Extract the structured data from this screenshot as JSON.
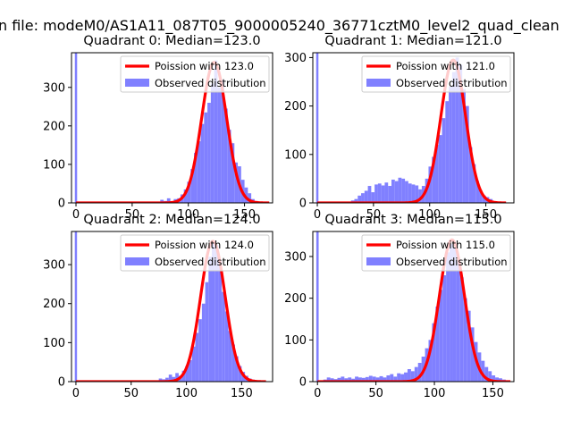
{
  "figure": {
    "suptitle": "n file: modeM0/AS1A11_087T05_9000005240_36771cztM0_level2_quad_clean"
  },
  "colors": {
    "poisson": "#ff0000",
    "histogram": "#8080ff",
    "axes": "#000000"
  },
  "chart_data": [
    {
      "type": "histogram",
      "title": "Quadrant 0: Median=123.0",
      "median": 123.0,
      "xlim": [
        -4,
        175
      ],
      "ylim": [
        0,
        390
      ],
      "xticks": [
        0,
        50,
        100,
        150
      ],
      "yticks": [
        0,
        100,
        200,
        300
      ],
      "legend": {
        "position": "top-right",
        "entries": [
          "Poission with 123.0",
          "Observed distribution"
        ]
      },
      "histogram": {
        "name": "Observed distribution",
        "bin_width": 3,
        "spike": {
          "x": 0,
          "value": 390
        },
        "bins": [
          [
            72,
            3
          ],
          [
            75,
            8
          ],
          [
            78,
            5
          ],
          [
            81,
            12
          ],
          [
            84,
            4
          ],
          [
            87,
            10
          ],
          [
            90,
            12
          ],
          [
            93,
            22
          ],
          [
            96,
            35
          ],
          [
            99,
            55
          ],
          [
            102,
            88
          ],
          [
            105,
            130
          ],
          [
            108,
            160
          ],
          [
            111,
            205
          ],
          [
            114,
            235
          ],
          [
            117,
            260
          ],
          [
            120,
            310
          ],
          [
            123,
            370
          ],
          [
            126,
            300
          ],
          [
            129,
            320
          ],
          [
            132,
            245
          ],
          [
            135,
            190
          ],
          [
            138,
            155
          ],
          [
            141,
            105
          ],
          [
            144,
            95
          ],
          [
            147,
            60
          ],
          [
            150,
            40
          ],
          [
            153,
            25
          ],
          [
            156,
            10
          ],
          [
            159,
            5
          ],
          [
            162,
            3
          ]
        ]
      },
      "poisson": {
        "name": "Poission with 123.0",
        "mu": 123.0,
        "peak": 365,
        "x_range": [
          0,
          172
        ]
      }
    },
    {
      "type": "histogram",
      "title": "Quadrant 1: Median=121.0",
      "median": 121.0,
      "xlim": [
        -4,
        175
      ],
      "ylim": [
        0,
        310
      ],
      "xticks": [
        0,
        50,
        100,
        150
      ],
      "yticks": [
        0,
        100,
        200,
        300
      ],
      "legend": {
        "position": "top-right",
        "entries": [
          "Poission with 121.0",
          "Observed distribution"
        ]
      },
      "histogram": {
        "name": "Observed distribution",
        "bin_width": 3,
        "spike": {
          "x": 0,
          "value": 310
        },
        "bins": [
          [
            30,
            5
          ],
          [
            33,
            8
          ],
          [
            36,
            15
          ],
          [
            39,
            20
          ],
          [
            42,
            25
          ],
          [
            45,
            35
          ],
          [
            48,
            22
          ],
          [
            51,
            38
          ],
          [
            54,
            40
          ],
          [
            57,
            36
          ],
          [
            60,
            42
          ],
          [
            63,
            35
          ],
          [
            66,
            48
          ],
          [
            69,
            45
          ],
          [
            72,
            52
          ],
          [
            75,
            50
          ],
          [
            78,
            45
          ],
          [
            81,
            40
          ],
          [
            84,
            38
          ],
          [
            87,
            36
          ],
          [
            90,
            28
          ],
          [
            93,
            35
          ],
          [
            96,
            50
          ],
          [
            99,
            75
          ],
          [
            102,
            95
          ],
          [
            105,
            120
          ],
          [
            108,
            140
          ],
          [
            111,
            175
          ],
          [
            114,
            210
          ],
          [
            117,
            240
          ],
          [
            120,
            270
          ],
          [
            123,
            300
          ],
          [
            126,
            285
          ],
          [
            129,
            235
          ],
          [
            132,
            200
          ],
          [
            135,
            115
          ],
          [
            138,
            80
          ],
          [
            141,
            45
          ],
          [
            144,
            25
          ],
          [
            147,
            15
          ],
          [
            150,
            12
          ],
          [
            153,
            8
          ]
        ]
      },
      "poisson": {
        "name": "Poission with 121.0",
        "mu": 121.0,
        "peak": 295,
        "x_range": [
          0,
          168
        ]
      }
    },
    {
      "type": "histogram",
      "title": "Quadrant 2: Median=124.0",
      "median": 124.0,
      "xlim": [
        -4,
        178
      ],
      "ylim": [
        0,
        385
      ],
      "xticks": [
        0,
        50,
        100,
        150
      ],
      "yticks": [
        0,
        100,
        200,
        300
      ],
      "legend": {
        "position": "top-right",
        "entries": [
          "Poission with 124.0",
          "Observed distribution"
        ]
      },
      "histogram": {
        "name": "Observed distribution",
        "bin_width": 3,
        "spike": {
          "x": 0,
          "value": 385
        },
        "bins": [
          [
            72,
            2
          ],
          [
            75,
            8
          ],
          [
            78,
            6
          ],
          [
            81,
            10
          ],
          [
            84,
            18
          ],
          [
            87,
            12
          ],
          [
            90,
            22
          ],
          [
            93,
            15
          ],
          [
            96,
            28
          ],
          [
            99,
            40
          ],
          [
            102,
            55
          ],
          [
            105,
            90
          ],
          [
            108,
            125
          ],
          [
            111,
            160
          ],
          [
            114,
            200
          ],
          [
            117,
            255
          ],
          [
            120,
            320
          ],
          [
            123,
            360
          ],
          [
            126,
            350
          ],
          [
            129,
            310
          ],
          [
            132,
            230
          ],
          [
            135,
            180
          ],
          [
            138,
            130
          ],
          [
            141,
            95
          ],
          [
            144,
            65
          ],
          [
            147,
            40
          ],
          [
            150,
            25
          ],
          [
            153,
            15
          ],
          [
            156,
            8
          ],
          [
            159,
            5
          ],
          [
            162,
            3
          ]
        ]
      },
      "poisson": {
        "name": "Poission with 124.0",
        "mu": 124.0,
        "peak": 360,
        "x_range": [
          0,
          172
        ]
      }
    },
    {
      "type": "histogram",
      "title": "Quadrant 3: Median=115.0",
      "median": 115.0,
      "xlim": [
        -4,
        168
      ],
      "ylim": [
        0,
        360
      ],
      "xticks": [
        0,
        50,
        100,
        150
      ],
      "yticks": [
        0,
        100,
        200,
        300
      ],
      "legend": {
        "position": "top-right",
        "entries": [
          "Poission with 115.0",
          "Observed distribution"
        ]
      },
      "histogram": {
        "name": "Observed distribution",
        "bin_width": 3,
        "spike": {
          "x": 0,
          "value": 360
        },
        "bins": [
          [
            5,
            5
          ],
          [
            8,
            10
          ],
          [
            11,
            8
          ],
          [
            14,
            6
          ],
          [
            17,
            9
          ],
          [
            20,
            12
          ],
          [
            23,
            8
          ],
          [
            26,
            10
          ],
          [
            29,
            7
          ],
          [
            32,
            12
          ],
          [
            35,
            10
          ],
          [
            38,
            9
          ],
          [
            41,
            11
          ],
          [
            44,
            14
          ],
          [
            47,
            12
          ],
          [
            50,
            10
          ],
          [
            53,
            13
          ],
          [
            56,
            10
          ],
          [
            59,
            15
          ],
          [
            62,
            18
          ],
          [
            65,
            12
          ],
          [
            68,
            20
          ],
          [
            71,
            18
          ],
          [
            74,
            22
          ],
          [
            77,
            30
          ],
          [
            80,
            25
          ],
          [
            83,
            35
          ],
          [
            86,
            45
          ],
          [
            89,
            60
          ],
          [
            92,
            80
          ],
          [
            95,
            100
          ],
          [
            98,
            140
          ],
          [
            101,
            180
          ],
          [
            104,
            220
          ],
          [
            107,
            255
          ],
          [
            110,
            310
          ],
          [
            113,
            330
          ],
          [
            116,
            320
          ],
          [
            119,
            290
          ],
          [
            122,
            250
          ],
          [
            125,
            200
          ],
          [
            128,
            170
          ],
          [
            131,
            130
          ],
          [
            134,
            95
          ],
          [
            137,
            70
          ],
          [
            140,
            50
          ],
          [
            143,
            35
          ],
          [
            146,
            25
          ],
          [
            149,
            15
          ],
          [
            152,
            10
          ],
          [
            155,
            8
          ],
          [
            158,
            5
          ]
        ]
      },
      "poisson": {
        "name": "Poission with 115.0",
        "mu": 115.0,
        "peak": 340,
        "x_range": [
          0,
          165
        ]
      }
    }
  ]
}
